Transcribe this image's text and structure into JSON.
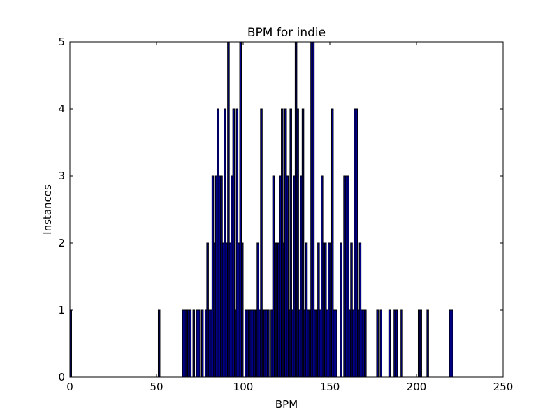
{
  "chart_data": {
    "type": "bar",
    "title": "BPM for indie",
    "xlabel": "BPM",
    "ylabel": "Instances",
    "xlim": [
      0,
      250
    ],
    "ylim": [
      0,
      5
    ],
    "xticks": [
      "0",
      "50",
      "100",
      "150",
      "200",
      "250"
    ],
    "yticks": [
      "0",
      "1",
      "2",
      "3",
      "4",
      "5"
    ],
    "grid": false,
    "legend": "none",
    "bar_color": "#00008b",
    "bar_edge_color": "#000000",
    "bar_width": 1,
    "x": [
      0,
      51,
      65,
      66,
      67,
      68,
      69,
      71,
      73,
      74,
      76,
      78,
      79,
      80,
      81,
      82,
      83,
      84,
      85,
      86,
      87,
      88,
      89,
      90,
      91,
      92,
      93,
      94,
      95,
      96,
      97,
      98,
      99,
      101,
      102,
      103,
      104,
      105,
      106,
      107,
      108,
      109,
      110,
      111,
      112,
      113,
      114,
      116,
      117,
      118,
      119,
      120,
      121,
      122,
      123,
      124,
      125,
      126,
      127,
      128,
      129,
      130,
      131,
      132,
      133,
      134,
      135,
      136,
      137,
      138,
      139,
      140,
      141,
      142,
      143,
      144,
      145,
      146,
      147,
      148,
      149,
      150,
      151,
      152,
      153,
      156,
      158,
      159,
      160,
      161,
      162,
      163,
      164,
      165,
      166,
      167,
      168,
      169,
      170,
      177,
      179,
      184,
      187,
      188,
      191,
      201,
      202,
      206,
      219,
      220
    ],
    "values": [
      1,
      1,
      1,
      1,
      1,
      1,
      1,
      1,
      1,
      1,
      1,
      1,
      2,
      1,
      1,
      3,
      2,
      3,
      4,
      3,
      3,
      2,
      4,
      2,
      5,
      2,
      3,
      4,
      1,
      4,
      2,
      5,
      2,
      1,
      1,
      1,
      1,
      1,
      1,
      1,
      2,
      1,
      4,
      1,
      1,
      1,
      1,
      1,
      3,
      2,
      2,
      2,
      3,
      4,
      2,
      4,
      3,
      1,
      4,
      1,
      3,
      5,
      4,
      1,
      3,
      4,
      1,
      2,
      1,
      1,
      5,
      5,
      1,
      1,
      2,
      1,
      3,
      2,
      2,
      1,
      2,
      2,
      4,
      1,
      1,
      2,
      3,
      3,
      3,
      1,
      2,
      1,
      4,
      4,
      1,
      2,
      1,
      1,
      1,
      1,
      1,
      1,
      1,
      1,
      1,
      1,
      1,
      1,
      1,
      1
    ]
  }
}
